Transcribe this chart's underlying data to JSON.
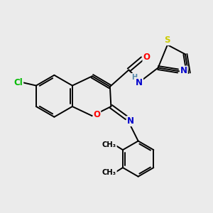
{
  "background_color": "#ebebeb",
  "figsize": [
    3.0,
    3.0
  ],
  "dpi": 100,
  "bond_color": "#000000",
  "atom_colors": {
    "C": "#000000",
    "N": "#0000cc",
    "O": "#ff0000",
    "S": "#cccc00",
    "Cl": "#00bb00",
    "H": "#5588aa"
  },
  "lw": 1.4
}
